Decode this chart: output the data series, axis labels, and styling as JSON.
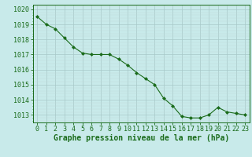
{
  "x": [
    0,
    1,
    2,
    3,
    4,
    5,
    6,
    7,
    8,
    9,
    10,
    11,
    12,
    13,
    14,
    15,
    16,
    17,
    18,
    19,
    20,
    21,
    22,
    23
  ],
  "y": [
    1019.5,
    1019.0,
    1018.7,
    1018.1,
    1017.5,
    1017.1,
    1017.0,
    1017.0,
    1017.0,
    1016.7,
    1016.3,
    1015.8,
    1015.4,
    1015.0,
    1014.1,
    1013.6,
    1012.9,
    1012.8,
    1012.8,
    1013.0,
    1013.5,
    1013.2,
    1013.1,
    1013.0
  ],
  "line_color": "#1a6b1a",
  "marker": "D",
  "marker_size": 2.0,
  "bg_color": "#c8eaea",
  "xlabel": "Graphe pression niveau de la mer (hPa)",
  "xlabel_color": "#1a6b1a",
  "xlabel_fontsize": 7,
  "tick_color": "#1a6b1a",
  "tick_fontsize": 6,
  "ylim_min": 1012.5,
  "ylim_max": 1020.3,
  "yticks": [
    1013,
    1014,
    1015,
    1016,
    1017,
    1018,
    1019,
    1020
  ],
  "xticks": [
    0,
    1,
    2,
    3,
    4,
    5,
    6,
    7,
    8,
    9,
    10,
    11,
    12,
    13,
    14,
    15,
    16,
    17,
    18,
    19,
    20,
    21,
    22,
    23
  ],
  "major_grid_color": "#a8c8c8",
  "minor_grid_color": "#c0dada"
}
